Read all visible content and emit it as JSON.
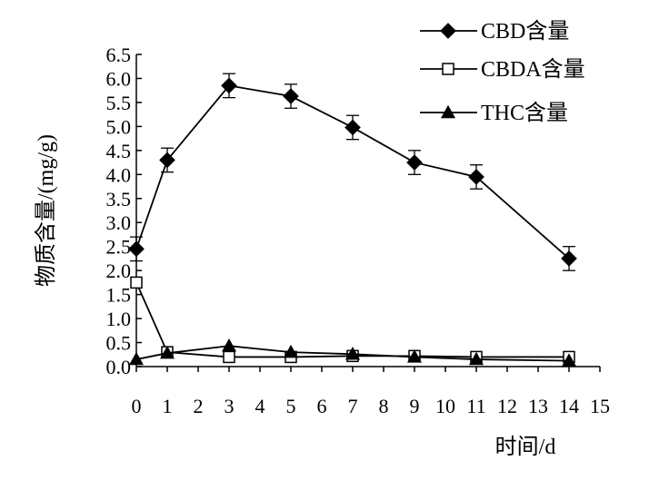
{
  "chart_data": {
    "type": "line",
    "x": [
      0,
      1,
      3,
      5,
      7,
      9,
      11,
      14
    ],
    "xlim": [
      0,
      15
    ],
    "ylim": [
      0,
      6.5
    ],
    "xticks": [
      "0",
      "1",
      "2",
      "3",
      "4",
      "5",
      "6",
      "7",
      "8",
      "9",
      "10",
      "11",
      "12",
      "13",
      "14",
      "15"
    ],
    "yticks": [
      "0.0",
      "0.5",
      "1.0",
      "1.5",
      "2.0",
      "2.5",
      "3.0",
      "3.5",
      "4.0",
      "4.5",
      "5.0",
      "5.5",
      "6.0",
      "6.5"
    ],
    "xlabel": "时间/d",
    "ylabel": "物质含量/(mg/g)",
    "title": "",
    "grid": false,
    "legend_position": "top-right",
    "series": [
      {
        "name": "CBD含量",
        "marker": "diamond",
        "fill": "#000000",
        "values": [
          2.45,
          4.3,
          5.85,
          5.63,
          4.98,
          4.25,
          3.95,
          2.25
        ],
        "errors": [
          0.25,
          0.25,
          0.25,
          0.25,
          0.25,
          0.25,
          0.25,
          0.25
        ]
      },
      {
        "name": "CBDA含量",
        "marker": "square",
        "fill": "#ffffff",
        "values": [
          1.75,
          0.3,
          0.2,
          0.2,
          0.22,
          0.22,
          0.2,
          0.2
        ],
        "errors": [
          0,
          0,
          0,
          0,
          0,
          0,
          0,
          0
        ]
      },
      {
        "name": "THC含量",
        "marker": "triangle",
        "fill": "#000000",
        "values": [
          0.15,
          0.28,
          0.43,
          0.3,
          0.26,
          0.2,
          0.15,
          0.12
        ],
        "errors": [
          0,
          0,
          0,
          0,
          0,
          0,
          0,
          0
        ]
      }
    ]
  }
}
